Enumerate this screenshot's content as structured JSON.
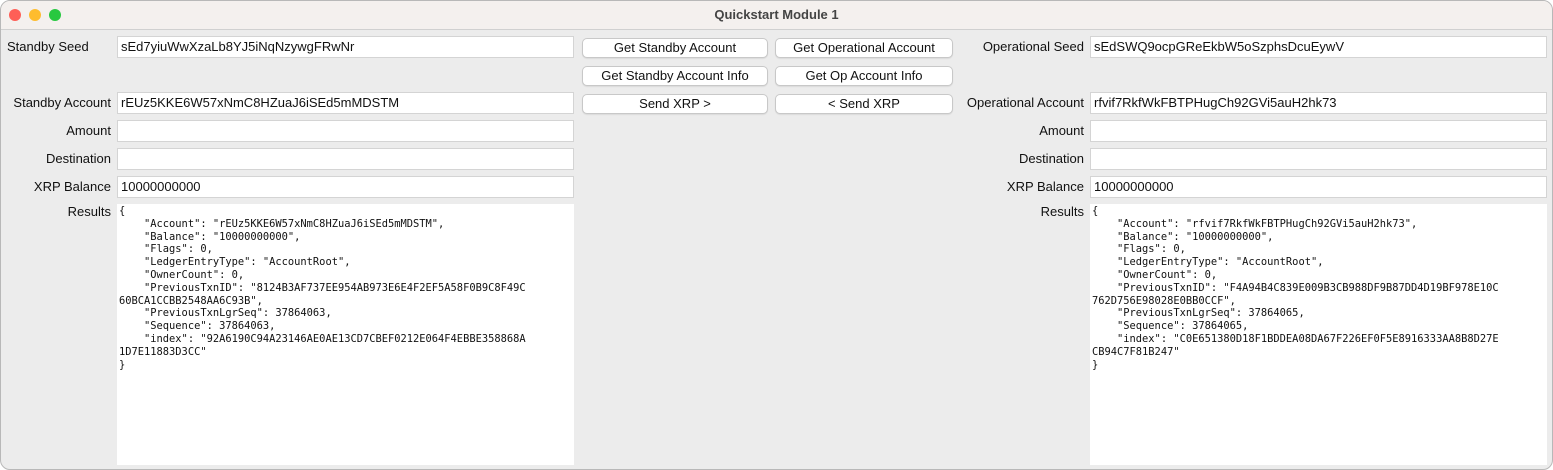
{
  "window": {
    "title": "Quickstart Module 1",
    "traffic_lights": {
      "close": "#fe5f57",
      "minimize": "#febc2e",
      "zoom": "#28c840"
    }
  },
  "standby": {
    "seed_label": "Standby Seed",
    "seed": "sEd7yiuWwXzaLb8YJ5iNqNzywgFRwNr",
    "account_label": "Standby Account",
    "account": "rEUz5KKE6W57xNmC8HZuaJ6iSEd5mMDSTM",
    "amount_label": "Amount",
    "amount": "",
    "destination_label": "Destination",
    "destination": "",
    "balance_label": "XRP Balance",
    "balance": "10000000000",
    "results_label": "Results",
    "results": "{\n    \"Account\": \"rEUz5KKE6W57xNmC8HZuaJ6iSEd5mMDSTM\",\n    \"Balance\": \"10000000000\",\n    \"Flags\": 0,\n    \"LedgerEntryType\": \"AccountRoot\",\n    \"OwnerCount\": 0,\n    \"PreviousTxnID\": \"8124B3AF737EE954AB973E6E4F2EF5A58F0B9C8F49C\n60BCA1CCBB2548AA6C93B\",\n    \"PreviousTxnLgrSeq\": 37864063,\n    \"Sequence\": 37864063,\n    \"index\": \"92A6190C94A23146AE0AE13CD7CBEF0212E064F4EBBE358868A\n1D7E11883D3CC\"\n}"
  },
  "operational": {
    "seed_label": "Operational Seed",
    "seed": "sEdSWQ9ocpGReEkbW5oSzphsDcuEywV",
    "account_label": "Operational Account",
    "account": "rfvif7RkfWkFBTPHugCh92GVi5auH2hk73",
    "amount_label": "Amount",
    "amount": "",
    "destination_label": "Destination",
    "destination": "",
    "balance_label": "XRP Balance",
    "balance": "10000000000",
    "results_label": "Results",
    "results": "{\n    \"Account\": \"rfvif7RkfWkFBTPHugCh92GVi5auH2hk73\",\n    \"Balance\": \"10000000000\",\n    \"Flags\": 0,\n    \"LedgerEntryType\": \"AccountRoot\",\n    \"OwnerCount\": 0,\n    \"PreviousTxnID\": \"F4A94B4C839E009B3CB988DF9B87DD4D19BF978E10C\n762D756E98028E0BB0CCF\",\n    \"PreviousTxnLgrSeq\": 37864065,\n    \"Sequence\": 37864065,\n    \"index\": \"C0E651380D18F1BDDEA08DA67F226EF0F5E8916333AA8B8D27E\nCB94C7F81B247\"\n}"
  },
  "buttons": {
    "get_standby_account": "Get Standby Account",
    "get_operational_account": "Get Operational Account",
    "get_standby_account_info": "Get Standby Account Info",
    "get_op_account_info": "Get Op Account Info",
    "send_xrp_to_op": "Send XRP >",
    "send_xrp_to_standby": "< Send XRP"
  }
}
